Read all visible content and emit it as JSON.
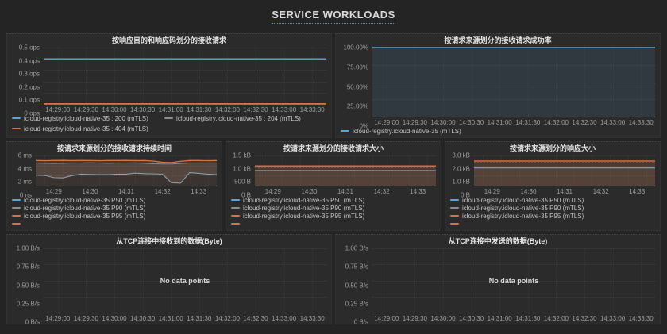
{
  "page_title": "SERVICE WORKLOADS",
  "accent_color": "#cf6a2e",
  "colors": {
    "blue": "#58a6d6",
    "gray": "#8c8c8c",
    "orange": "#d97143"
  },
  "no_data_label": "No data points",
  "panels": [
    {
      "title": "按响应目的和响应码划分的接收请求",
      "yticks": [
        "0.5 ops",
        "0.4 ops",
        "0.3 ops",
        "0.2 ops",
        "0.1 ops",
        "0 ops"
      ],
      "xticks": [
        "14:29:00",
        "14:29:30",
        "14:30:00",
        "14:30:30",
        "14:31:00",
        "14:31:30",
        "14:32:00",
        "14:32:30",
        "14:33:00",
        "14:33:30"
      ],
      "vline_mult": 1,
      "legend": [
        {
          "label": "icloud-registry.icloud-native-35 : 200 (mTLS)",
          "color": "#58a6d6"
        },
        {
          "label": "icloud-registry.icloud-native-35 : 204 (mTLS)",
          "color": "#8c8c8c"
        },
        {
          "label": "icloud-registry.icloud-native-35 : 404 (mTLS)",
          "color": "#d97143"
        }
      ],
      "chart_data": {
        "type": "line",
        "ymax": 0.5,
        "ylabel_unit": "ops",
        "series": [
          {
            "name": "icloud-registry.icloud-native-35 : 200 (mTLS)",
            "color": "#58a6d6",
            "width": 1.3,
            "values": [
              0.4,
              0.4,
              0.4,
              0.4,
              0.4,
              0.4,
              0.4,
              0.4,
              0.4,
              0.4,
              0.4
            ]
          },
          {
            "name": "icloud-registry.icloud-native-35 : 204 (mTLS)",
            "color": "#8c8c8c",
            "width": 1,
            "values": [
              0.002,
              0.002,
              0.002,
              0.002,
              0.002,
              0.002,
              0.002,
              0.002,
              0.002,
              0.002,
              0.002
            ]
          },
          {
            "name": "icloud-registry.icloud-native-35 : 404 (mTLS)",
            "color": "#d97143",
            "width": 1.2,
            "values": [
              0.003,
              0.003,
              0.003,
              0.003,
              0.003,
              0.003,
              0.003,
              0.003,
              0.003,
              0.003,
              0.003
            ]
          }
        ]
      }
    },
    {
      "title": "按请求来源划分的接收请求成功率",
      "yticks": [
        "100.00%",
        "75.00%",
        "50.00%",
        "25.00%",
        "0%"
      ],
      "xticks": [
        "14:29:00",
        "14:29:30",
        "14:30:00",
        "14:30:30",
        "14:31:00",
        "14:31:30",
        "14:32:00",
        "14:32:30",
        "14:33:00",
        "14:33:30"
      ],
      "vline_mult": 1,
      "legend": [
        {
          "label": "icloud-registry.icloud-native-35 (mTLS)",
          "color": "#58a6d6"
        }
      ],
      "chart_data": {
        "type": "line",
        "ymax": 100,
        "ylabel_unit": "%",
        "series": [
          {
            "name": "icloud-registry.icloud-native-35 (mTLS)",
            "color": "#58a6d6",
            "width": 1.5,
            "fill": "rgba(88,166,214,0.12)",
            "values": [
              100,
              100,
              100,
              100,
              100,
              100,
              100,
              100,
              100,
              100,
              100
            ]
          }
        ]
      }
    },
    {
      "title": "按请求来源划分的接收请求持续时间",
      "yticks": [
        "6 ms",
        "4 ms",
        "2 ms",
        "0 ns"
      ],
      "xticks": [
        "14:29",
        "14:30",
        "14:31",
        "14:32",
        "14:33"
      ],
      "vline_mult": 2,
      "legend": [
        {
          "label": "icloud-registry.icloud-native-35 P50 (mTLS)",
          "color": "#58a6d6"
        },
        {
          "label": "icloud-registry.icloud-native-35 P90 (mTLS)",
          "color": "#8c8c8c"
        },
        {
          "label": "icloud-registry.icloud-native-35 P95 (mTLS)",
          "color": "#d97143"
        },
        {
          "label": "",
          "color": "#d97143"
        }
      ],
      "chart_data": {
        "type": "line",
        "ymax": 6,
        "ylabel_unit": "ms",
        "series": [
          {
            "name": "P95",
            "color": "#d97143",
            "width": 1.3,
            "fill": "rgba(217,113,67,0.17)",
            "values": [
              5.0,
              4.97,
              5.0,
              5.02,
              4.98,
              5.0,
              5.0,
              4.97,
              5.0,
              5.0,
              5.02,
              4.98,
              5.0,
              4.9,
              4.65,
              4.6,
              4.85,
              5.0,
              5.0,
              4.97,
              5.0
            ]
          },
          {
            "name": "P90",
            "color": "#8c8c8c",
            "width": 1,
            "fill": "rgba(150,150,150,0.16)",
            "values": [
              4.5,
              4.45,
              4.4,
              4.45,
              4.5,
              4.5,
              4.55,
              4.5,
              4.45,
              4.5,
              4.5,
              4.52,
              4.45,
              4.35,
              4.3,
              4.3,
              4.4,
              4.5,
              4.5,
              4.5,
              4.5
            ]
          },
          {
            "name": "P50",
            "color": "#87a0ae",
            "width": 1.1,
            "fill": "rgba(34,33,32,0.5)",
            "values": [
              2.1,
              2.05,
              1.6,
              1.55,
              2.0,
              2.3,
              2.25,
              2.2,
              2.2,
              2.3,
              2.3,
              2.5,
              2.4,
              2.35,
              2.3,
              0.55,
              0.5,
              2.6,
              2.45,
              2.3,
              2.2
            ]
          }
        ]
      }
    },
    {
      "title": "按请求来源划分的接收请求大小",
      "yticks": [
        "1.5 kB",
        "1.0 kB",
        "500 B",
        "0 B"
      ],
      "xticks": [
        "14:29",
        "14:30",
        "14:31",
        "14:32",
        "14:33"
      ],
      "vline_mult": 2,
      "legend": [
        {
          "label": "icloud-registry.icloud-native-35 P50 (mTLS)",
          "color": "#58a6d6"
        },
        {
          "label": "icloud-registry.icloud-native-35 P90 (mTLS)",
          "color": "#8c8c8c"
        },
        {
          "label": "icloud-registry.icloud-native-35 P95 (mTLS)",
          "color": "#d97143"
        },
        {
          "label": "",
          "color": "#d97143"
        }
      ],
      "chart_data": {
        "type": "line",
        "ymax": 1500,
        "ylabel_unit": "B",
        "series": [
          {
            "name": "P95",
            "color": "#d97143",
            "width": 1.4,
            "fill": "rgba(217,113,67,0.2)",
            "values": [
              980,
              980,
              980,
              980,
              980,
              980,
              980,
              980,
              980,
              980,
              980
            ]
          },
          {
            "name": "P95-inner",
            "color": "#a85c3e",
            "width": 1,
            "dash": "2,2",
            "values": [
              905,
              905,
              905,
              905,
              905,
              905,
              905,
              905,
              905,
              905,
              905
            ]
          },
          {
            "name": "P90",
            "color": "#8c8c8c",
            "width": 1,
            "fill": "rgba(150,150,150,0.1)",
            "values": [
              762,
              762,
              762,
              762,
              762,
              762,
              762,
              762,
              762,
              762,
              762
            ]
          },
          {
            "name": "P50",
            "color": "#58a6d6",
            "width": 1,
            "values": [
              728,
              728,
              728,
              728,
              728,
              728,
              728,
              728,
              728,
              728,
              728
            ]
          }
        ]
      }
    },
    {
      "title": "按请求来源划分的响应大小",
      "yticks": [
        "3.0 kB",
        "2.0 kB",
        "1.0 kB",
        "0 B"
      ],
      "xticks": [
        "14:29",
        "14:30",
        "14:31",
        "14:32",
        "14:33"
      ],
      "vline_mult": 2,
      "legend": [
        {
          "label": "icloud-registry.icloud-native-35 P50 (mTLS)",
          "color": "#58a6d6"
        },
        {
          "label": "icloud-registry.icloud-native-35 P90 (mTLS)",
          "color": "#8c8c8c"
        },
        {
          "label": "icloud-registry.icloud-native-35 P95 (mTLS)",
          "color": "#d97143"
        },
        {
          "label": "",
          "color": "#d97143"
        }
      ],
      "chart_data": {
        "type": "line",
        "ymax": 3000,
        "ylabel_unit": "B",
        "series": [
          {
            "name": "P95",
            "color": "#d97143",
            "width": 1.4,
            "fill": "rgba(217,113,67,0.2)",
            "values": [
              2450,
              2450,
              2450,
              2450,
              2450,
              2450,
              2450,
              2450,
              2450,
              2450,
              2450
            ]
          },
          {
            "name": "P95-inner",
            "color": "#a85c3e",
            "width": 1,
            "dash": "2,2",
            "values": [
              2300,
              2300,
              2300,
              2300,
              2300,
              2300,
              2300,
              2300,
              2300,
              2300,
              2300
            ]
          },
          {
            "name": "P90",
            "color": "#8c8c8c",
            "width": 1,
            "fill": "rgba(150,150,150,0.1)",
            "values": [
              1800,
              1800,
              1800,
              1800,
              1800,
              1800,
              1800,
              1800,
              1800,
              1800,
              1800
            ]
          },
          {
            "name": "P50",
            "color": "#58a6d6",
            "width": 1,
            "values": [
              1755,
              1755,
              1755,
              1755,
              1755,
              1755,
              1755,
              1755,
              1755,
              1755,
              1755
            ]
          }
        ]
      }
    },
    {
      "title": "从TCP连接中接收到的数据(Byte)",
      "yticks": [
        "1.00 B/s",
        "0.75 B/s",
        "0.50 B/s",
        "0.25 B/s",
        "0 B/s"
      ],
      "xticks": [
        "14:29:00",
        "14:29:30",
        "14:30:00",
        "14:30:30",
        "14:31:00",
        "14:31:30",
        "14:32:00",
        "14:32:30",
        "14:33:00",
        "14:33:30"
      ],
      "vline_mult": 1,
      "legend": [],
      "chart_data": {
        "type": "line",
        "ymax": 1,
        "ylabel_unit": "B/s",
        "no_data": true,
        "series": []
      }
    },
    {
      "title": "从TCP连接中发送的数据(Byte)",
      "yticks": [
        "1.00 B/s",
        "0.75 B/s",
        "0.50 B/s",
        "0.25 B/s",
        "0 B/s"
      ],
      "xticks": [
        "14:29:00",
        "14:29:30",
        "14:30:00",
        "14:30:30",
        "14:31:00",
        "14:31:30",
        "14:32:00",
        "14:32:30",
        "14:33:00",
        "14:33:30"
      ],
      "vline_mult": 1,
      "legend": [],
      "chart_data": {
        "type": "line",
        "ymax": 1,
        "ylabel_unit": "B/s",
        "no_data": true,
        "series": []
      }
    }
  ]
}
